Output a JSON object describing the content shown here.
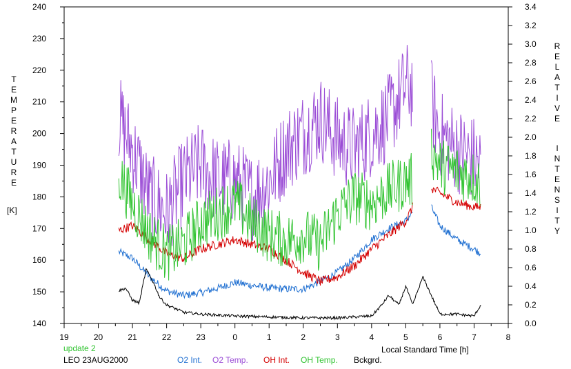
{
  "chart_data": {
    "type": "line",
    "annotation_top": "update 2",
    "annotation_bottom": "LEO 23AUG2000",
    "xlabel": "Local Standard Time [h]",
    "x_ticks": [
      "19",
      "20",
      "21",
      "22",
      "23",
      "0",
      "1",
      "2",
      "3",
      "4",
      "5",
      "6",
      "7",
      "8"
    ],
    "left_axis": {
      "label_letters": [
        "T",
        "E",
        "M",
        "P",
        "E",
        "R",
        "A",
        "T",
        "U",
        "R",
        "E"
      ],
      "unit": "[K]",
      "ylim": [
        140,
        240
      ],
      "ticks": [
        "140",
        "150",
        "160",
        "170",
        "180",
        "190",
        "200",
        "210",
        "220",
        "230",
        "240"
      ]
    },
    "right_axis": {
      "label_word1": [
        "R",
        "E",
        "L",
        "A",
        "T",
        "I",
        "V",
        "E"
      ],
      "label_word2": [
        "I",
        "N",
        "T",
        "E",
        "N",
        "S",
        "I",
        "T",
        "Y"
      ],
      "ylim": [
        0.0,
        3.4
      ],
      "ticks": [
        "0.0",
        "0.2",
        "0.4",
        "0.6",
        "0.8",
        "1.0",
        "1.2",
        "1.4",
        "1.6",
        "1.8",
        "2.0",
        "2.2",
        "2.4",
        "2.6",
        "2.8",
        "3.0",
        "3.2",
        "3.4"
      ]
    },
    "colors": {
      "O2 Int.": "#1f6fd1",
      "O2 Temp.": "#9b4dd6",
      "OH Int.": "#d40000",
      "OH Temp.": "#33c433",
      "Bckgrd.": "#000000",
      "update": "#33c433"
    },
    "series": [
      {
        "name": "O2 Int.",
        "axis": "right",
        "x": [
          20.6,
          21.0,
          21.5,
          22.0,
          22.5,
          23.0,
          23.5,
          24.0,
          24.5,
          25.0,
          25.5,
          26.0,
          26.5,
          27.0,
          27.5,
          28.0,
          28.5,
          29.0,
          29.2
        ],
        "y": [
          0.77,
          0.7,
          0.5,
          0.35,
          0.3,
          0.33,
          0.38,
          0.44,
          0.41,
          0.38,
          0.37,
          0.37,
          0.45,
          0.55,
          0.7,
          0.9,
          1.02,
          1.1,
          1.2
        ],
        "gap_after": 29.2,
        "x2": [
          29.75,
          30.0,
          30.5,
          31.0,
          31.2
        ],
        "y2": [
          1.25,
          1.05,
          0.9,
          0.8,
          0.75
        ]
      },
      {
        "name": "O2 Temp.",
        "axis": "left",
        "x": [
          20.6,
          21.0,
          21.5,
          22.0,
          22.5,
          23.0,
          23.5,
          24.0,
          24.5,
          25.0,
          25.5,
          26.0,
          26.5,
          27.0,
          27.5,
          28.0,
          28.5,
          29.0,
          29.2
        ],
        "y": [
          205,
          195,
          180,
          175,
          185,
          190,
          185,
          185,
          180,
          185,
          195,
          200,
          205,
          198,
          195,
          200,
          205,
          215,
          215
        ],
        "gap_after": 29.2,
        "x2": [
          29.75,
          30.0,
          30.5,
          31.0,
          31.2
        ],
        "y2": [
          210,
          200,
          195,
          192,
          190
        ]
      },
      {
        "name": "OH Int.",
        "axis": "right",
        "x": [
          20.6,
          21.0,
          21.5,
          22.0,
          22.5,
          23.0,
          23.5,
          24.0,
          24.5,
          25.0,
          25.5,
          26.0,
          26.5,
          27.0,
          27.5,
          28.0,
          28.5,
          29.0,
          29.2
        ],
        "y": [
          1.0,
          1.05,
          0.9,
          0.75,
          0.7,
          0.8,
          0.85,
          0.9,
          0.85,
          0.8,
          0.68,
          0.55,
          0.45,
          0.5,
          0.62,
          0.8,
          0.95,
          1.1,
          1.25
        ],
        "gap_after": 29.2,
        "x2": [
          29.75,
          30.0,
          30.5,
          31.0,
          31.2
        ],
        "y2": [
          1.45,
          1.4,
          1.3,
          1.25,
          1.25
        ]
      },
      {
        "name": "OH Temp.",
        "axis": "left",
        "x": [
          20.6,
          21.0,
          21.5,
          22.0,
          22.5,
          23.0,
          23.5,
          24.0,
          24.5,
          25.0,
          25.5,
          26.0,
          26.5,
          27.0,
          27.5,
          28.0,
          28.5,
          29.0,
          29.2
        ],
        "y": [
          187,
          178,
          168,
          162,
          165,
          172,
          175,
          178,
          172,
          168,
          166,
          168,
          165,
          175,
          180,
          178,
          182,
          185,
          185
        ],
        "gap_after": 29.2,
        "x2": [
          29.75,
          30.0,
          30.5,
          31.0,
          31.2
        ],
        "y2": [
          195,
          190,
          188,
          186,
          184
        ]
      },
      {
        "name": "Bckgrd.",
        "axis": "right",
        "x": [
          20.6,
          20.8,
          21.0,
          21.2,
          21.4,
          21.6,
          21.8,
          22.0,
          22.5,
          23.0,
          24.0,
          25.0,
          26.0,
          27.0,
          28.0,
          28.3,
          28.5,
          28.8,
          29.0,
          29.2,
          29.5,
          30.0,
          30.5,
          31.0,
          31.2
        ],
        "y": [
          0.35,
          0.38,
          0.25,
          0.22,
          0.58,
          0.45,
          0.28,
          0.2,
          0.12,
          0.1,
          0.08,
          0.07,
          0.06,
          0.06,
          0.08,
          0.2,
          0.3,
          0.2,
          0.4,
          0.2,
          0.5,
          0.1,
          0.1,
          0.08,
          0.2
        ]
      }
    ]
  }
}
